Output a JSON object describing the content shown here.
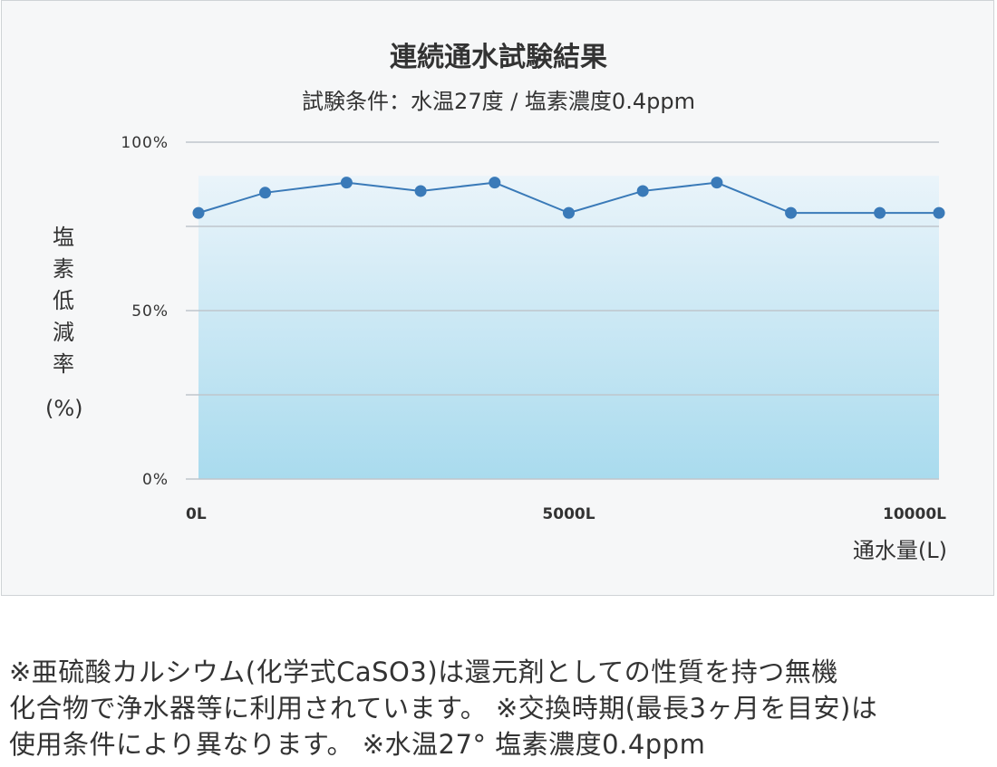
{
  "chart_data": {
    "type": "line",
    "title": "連続通水試験結果",
    "subtitle": "試験条件：水温27度 / 塩素濃度0.4ppm",
    "ylabel": "塩素低減率",
    "ylabel_unit": "(%)",
    "xlabel": "通水量(L)",
    "ylim": [
      0,
      100
    ],
    "xlim": [
      0,
      10000
    ],
    "yticks": [
      {
        "value": 100,
        "label": "100%"
      },
      {
        "value": 50,
        "label": "50%"
      },
      {
        "value": 0,
        "label": "0%"
      }
    ],
    "gridlines": [
      100,
      75,
      50,
      25,
      0
    ],
    "xticks": [
      {
        "value": 0,
        "label": "0L"
      },
      {
        "value": 5000,
        "label": "5000L"
      },
      {
        "value": 10000,
        "label": "10000L"
      }
    ],
    "x": [
      0,
      900,
      2000,
      3000,
      4000,
      5000,
      6000,
      7000,
      8000,
      9200,
      10000
    ],
    "values": [
      79,
      85,
      88,
      85.5,
      88,
      79,
      85.5,
      88,
      79,
      79,
      79
    ],
    "line_color": "#3a7ab8",
    "fill_top_color": "#eaf4fa",
    "fill_bottom_color": "#a9dbee",
    "grid": true
  },
  "notes": [
    "※亜硫酸カルシウム(化学式CaSO3)は還元剤としての性質を持つ無機",
    "化合物で浄水器等に利用されています。 ※交換時期(最長3ヶ月を目安)は",
    "使用条件により異なります。 ※水温27° 塩素濃度0.4ppm"
  ]
}
